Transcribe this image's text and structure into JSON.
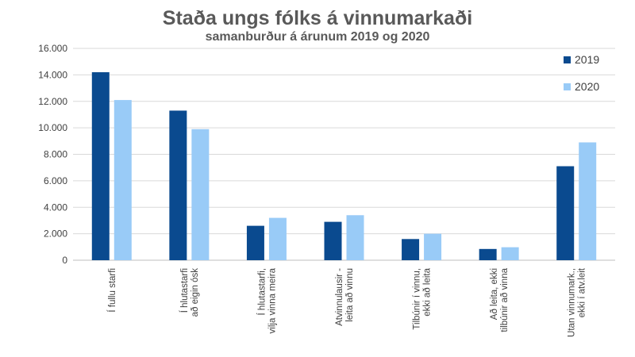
{
  "chart_data": {
    "type": "bar",
    "title": "Staða ungs fólks á vinnumarkaði",
    "subtitle": "samanburður á árunum 2019 og 2020",
    "xlabel": "",
    "ylabel": "",
    "ylim": [
      0,
      16000
    ],
    "yticks": [
      0,
      2000,
      4000,
      6000,
      8000,
      10000,
      12000,
      14000,
      16000
    ],
    "ytick_labels": [
      "0",
      "2.000",
      "4.000",
      "6.000",
      "8.000",
      "10.000",
      "12.000",
      "14.000",
      "16.000"
    ],
    "grid": "horizontal",
    "legend_position": "top-right",
    "categories": [
      [
        "Í fullu starfi"
      ],
      [
        "Í hlutastarfi",
        "að eigin ósk"
      ],
      [
        "Í hlutastarfi,",
        "vilja vinna meira"
      ],
      [
        "Atvinnulausir -",
        "leita að vinnu"
      ],
      [
        "Tilbúnir í vinnu,",
        "ekki að leita"
      ],
      [
        "Að leita, ekki",
        "tilbúnir að vinna"
      ],
      [
        "Utan vinnumark.,",
        "ekki í atv.leit"
      ]
    ],
    "series": [
      {
        "name": "2019",
        "color": "#0a4a8f",
        "values": [
          14200,
          11300,
          2600,
          2900,
          1600,
          850,
          7100
        ]
      },
      {
        "name": "2020",
        "color": "#99cbf7",
        "values": [
          12100,
          9900,
          3200,
          3400,
          2000,
          980,
          8900
        ]
      }
    ]
  }
}
